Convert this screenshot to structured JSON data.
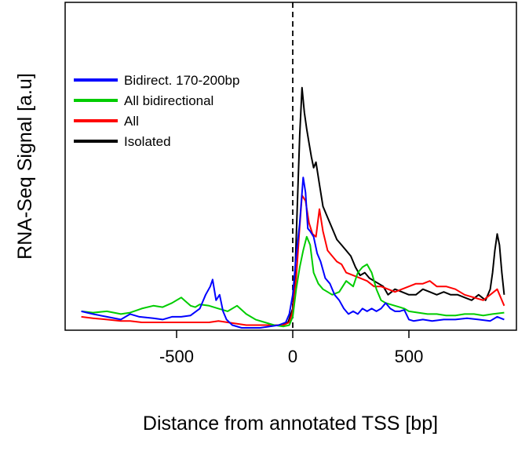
{
  "chart_data": {
    "type": "line",
    "xlabel": "Distance from annotated TSS [bp]",
    "ylabel": "RNA-Seq Signal [a.u]",
    "xlim": [
      -1000,
      1000
    ],
    "xticks": [
      -500,
      0,
      500
    ],
    "xtick_labels": [
      "-500",
      "0",
      "500"
    ],
    "yticks": [],
    "ylim": [
      0,
      1
    ],
    "grid": false,
    "legend_position": "top-left",
    "vline": 0,
    "series": [
      {
        "name": "Bidirect. 170-200bp",
        "color": "#0000ff",
        "x": [
          -910,
          -860,
          -800,
          -740,
          -700,
          -660,
          -600,
          -560,
          -520,
          -480,
          -440,
          -400,
          -375,
          -355,
          -345,
          -330,
          -315,
          -300,
          -285,
          -260,
          -220,
          -180,
          -140,
          -100,
          -60,
          -30,
          -15,
          0,
          15,
          30,
          45,
          55,
          65,
          75,
          90,
          105,
          120,
          140,
          160,
          180,
          200,
          220,
          240,
          260,
          280,
          300,
          320,
          340,
          360,
          380,
          400,
          420,
          440,
          460,
          480,
          500,
          520,
          560,
          600,
          650,
          700,
          750,
          800,
          850,
          880,
          910
        ],
        "y": [
          0.06,
          0.05,
          0.04,
          0.03,
          0.05,
          0.04,
          0.035,
          0.03,
          0.04,
          0.04,
          0.045,
          0.07,
          0.12,
          0.15,
          0.175,
          0.1,
          0.12,
          0.06,
          0.03,
          0.01,
          0.0,
          0.0,
          0.0,
          0.005,
          0.01,
          0.02,
          0.05,
          0.12,
          0.26,
          0.38,
          0.545,
          0.49,
          0.36,
          0.35,
          0.33,
          0.27,
          0.24,
          0.18,
          0.16,
          0.12,
          0.1,
          0.07,
          0.05,
          0.06,
          0.05,
          0.07,
          0.06,
          0.07,
          0.06,
          0.07,
          0.09,
          0.07,
          0.06,
          0.06,
          0.065,
          0.03,
          0.025,
          0.03,
          0.025,
          0.03,
          0.03,
          0.035,
          0.03,
          0.025,
          0.04,
          0.03
        ]
      },
      {
        "name": "All bidirectional",
        "color": "#00cc00",
        "x": [
          -910,
          -860,
          -800,
          -740,
          -700,
          -650,
          -600,
          -560,
          -520,
          -480,
          -440,
          -420,
          -400,
          -360,
          -320,
          -280,
          -240,
          -200,
          -160,
          -120,
          -80,
          -40,
          -15,
          0,
          15,
          30,
          45,
          60,
          75,
          90,
          110,
          130,
          150,
          170,
          200,
          230,
          260,
          280,
          300,
          320,
          340,
          360,
          380,
          400,
          420,
          440,
          460,
          480,
          500,
          540,
          580,
          620,
          660,
          700,
          740,
          780,
          820,
          860,
          910
        ],
        "y": [
          0.06,
          0.055,
          0.06,
          0.05,
          0.055,
          0.07,
          0.08,
          0.075,
          0.09,
          0.11,
          0.08,
          0.075,
          0.085,
          0.08,
          0.07,
          0.06,
          0.08,
          0.05,
          0.03,
          0.02,
          0.01,
          0.005,
          0.01,
          0.04,
          0.14,
          0.22,
          0.28,
          0.33,
          0.3,
          0.2,
          0.16,
          0.14,
          0.13,
          0.12,
          0.13,
          0.17,
          0.15,
          0.2,
          0.22,
          0.23,
          0.2,
          0.14,
          0.1,
          0.09,
          0.085,
          0.08,
          0.075,
          0.07,
          0.06,
          0.055,
          0.05,
          0.05,
          0.045,
          0.045,
          0.05,
          0.05,
          0.045,
          0.05,
          0.055
        ]
      },
      {
        "name": "All",
        "color": "#ff0000",
        "x": [
          -910,
          -860,
          -800,
          -740,
          -700,
          -650,
          -600,
          -560,
          -520,
          -480,
          -440,
          -400,
          -360,
          -320,
          -280,
          -240,
          -200,
          -160,
          -120,
          -80,
          -40,
          -15,
          0,
          15,
          30,
          40,
          55,
          70,
          85,
          100,
          115,
          130,
          150,
          170,
          190,
          210,
          230,
          260,
          290,
          320,
          350,
          380,
          410,
          440,
          470,
          500,
          530,
          560,
          590,
          620,
          660,
          700,
          740,
          780,
          820,
          850,
          880,
          910
        ],
        "y": [
          0.04,
          0.035,
          0.03,
          0.025,
          0.025,
          0.02,
          0.02,
          0.02,
          0.02,
          0.02,
          0.02,
          0.02,
          0.02,
          0.025,
          0.02,
          0.015,
          0.01,
          0.01,
          0.01,
          0.01,
          0.01,
          0.02,
          0.06,
          0.18,
          0.37,
          0.48,
          0.46,
          0.38,
          0.34,
          0.33,
          0.43,
          0.35,
          0.28,
          0.26,
          0.24,
          0.23,
          0.2,
          0.19,
          0.18,
          0.17,
          0.15,
          0.15,
          0.14,
          0.13,
          0.14,
          0.15,
          0.16,
          0.16,
          0.17,
          0.15,
          0.15,
          0.14,
          0.12,
          0.11,
          0.1,
          0.12,
          0.14,
          0.08
        ]
      },
      {
        "name": "Isolated",
        "color": "#000000",
        "x": [
          -60,
          -40,
          -20,
          0,
          10,
          20,
          30,
          40,
          50,
          60,
          70,
          80,
          90,
          100,
          115,
          130,
          150,
          170,
          190,
          210,
          230,
          250,
          270,
          290,
          310,
          330,
          350,
          370,
          390,
          410,
          440,
          470,
          500,
          530,
          560,
          590,
          620,
          650,
          680,
          710,
          740,
          770,
          800,
          830,
          850,
          860,
          870,
          880,
          890,
          900,
          910
        ],
        "y": [
          0.01,
          0.015,
          0.02,
          0.07,
          0.2,
          0.45,
          0.7,
          0.87,
          0.78,
          0.72,
          0.67,
          0.62,
          0.58,
          0.6,
          0.52,
          0.44,
          0.4,
          0.36,
          0.32,
          0.3,
          0.28,
          0.26,
          0.22,
          0.19,
          0.2,
          0.18,
          0.17,
          0.16,
          0.15,
          0.12,
          0.14,
          0.13,
          0.12,
          0.12,
          0.14,
          0.13,
          0.12,
          0.13,
          0.12,
          0.12,
          0.11,
          0.1,
          0.12,
          0.1,
          0.14,
          0.2,
          0.28,
          0.34,
          0.3,
          0.2,
          0.12
        ]
      }
    ]
  }
}
